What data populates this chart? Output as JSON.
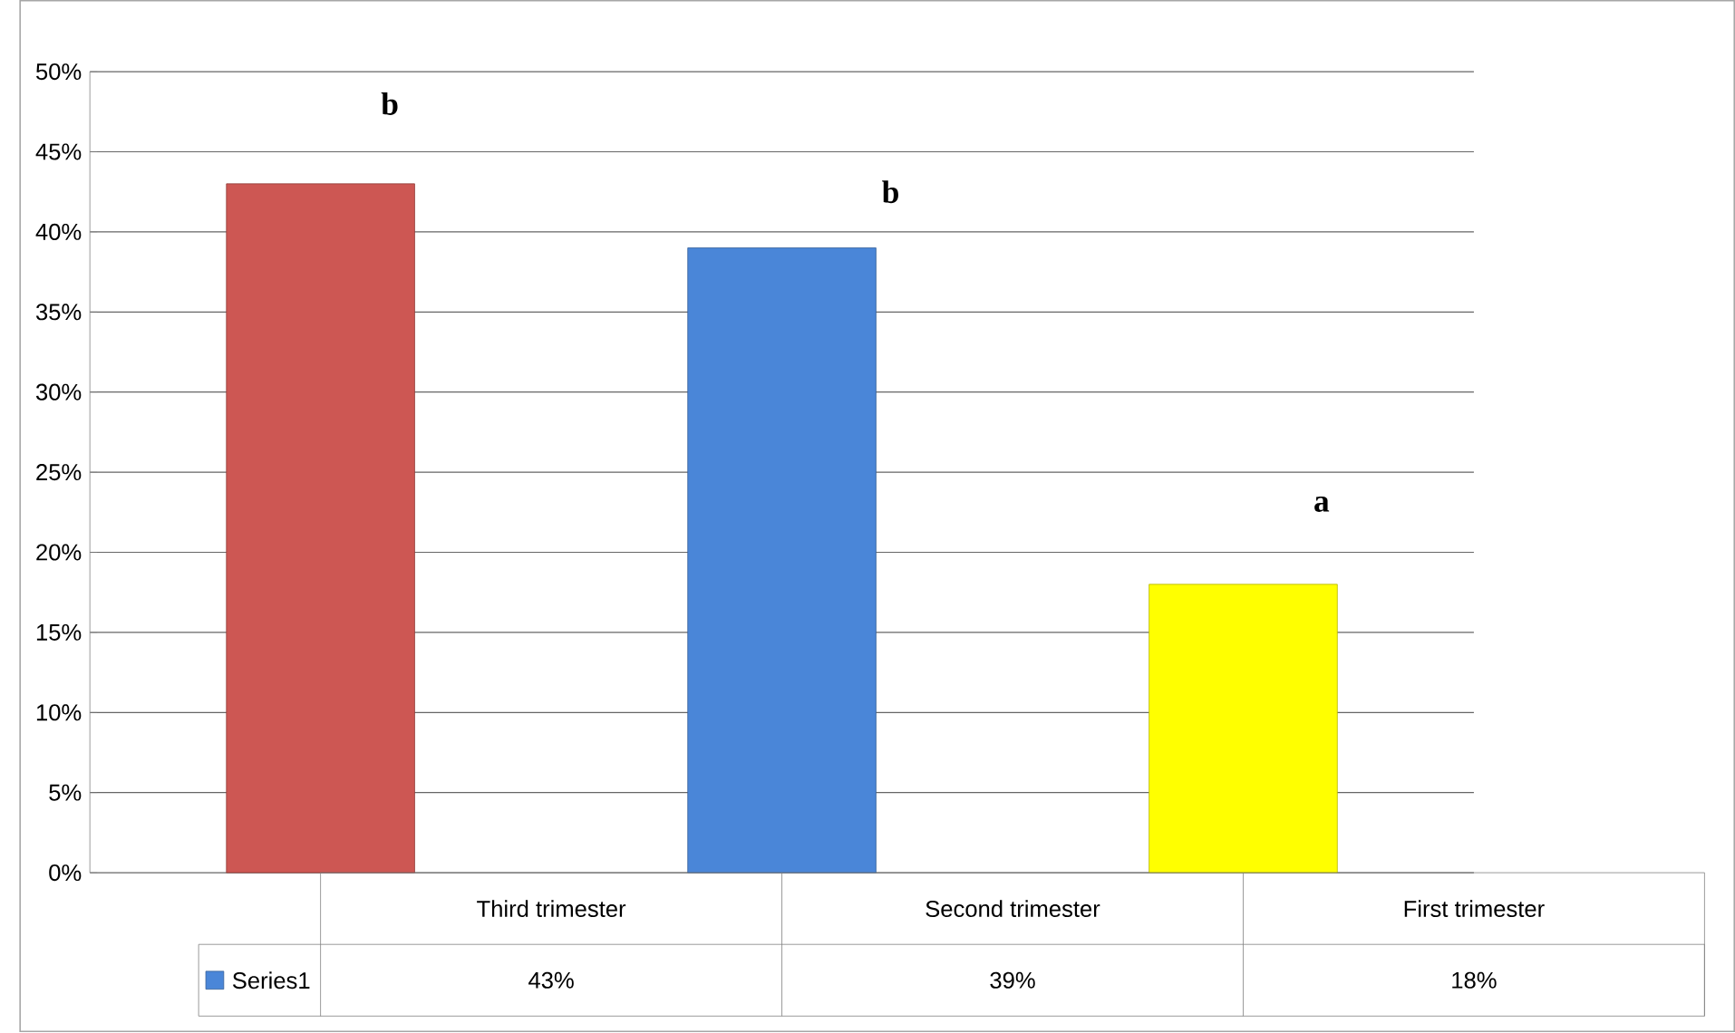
{
  "chart_data": {
    "type": "bar",
    "categories": [
      "Third trimester",
      "Second trimester",
      "First trimester"
    ],
    "series": [
      {
        "name": "Series1",
        "values": [
          43,
          39,
          18
        ],
        "colors": [
          "#cd5753",
          "#4a86d8",
          "#ffff00"
        ],
        "value_labels": [
          "43%",
          "39%",
          "18%"
        ]
      }
    ],
    "ylim": [
      0,
      50
    ],
    "yticks": [
      {
        "value": 0,
        "label": "0%"
      },
      {
        "value": 5,
        "label": "5%"
      },
      {
        "value": 10,
        "label": "10%"
      },
      {
        "value": 15,
        "label": "15%"
      },
      {
        "value": 20,
        "label": "20%"
      },
      {
        "value": 25,
        "label": "25%"
      },
      {
        "value": 30,
        "label": "30%"
      },
      {
        "value": 35,
        "label": "35%"
      },
      {
        "value": 40,
        "label": "40%"
      },
      {
        "value": 45,
        "label": "45%"
      },
      {
        "value": 50,
        "label": "50%"
      }
    ],
    "grid": "y",
    "annotations": [
      "b",
      "b",
      "a"
    ]
  }
}
